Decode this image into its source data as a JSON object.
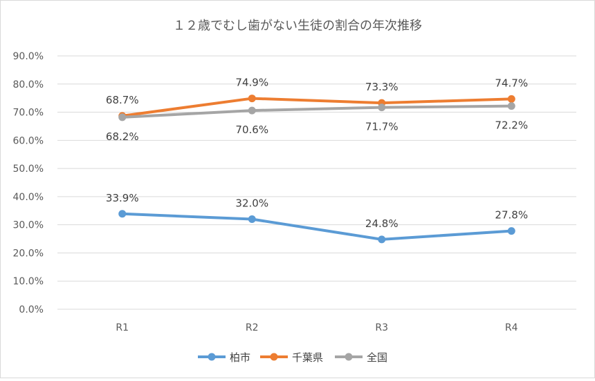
{
  "chart_data": {
    "type": "line",
    "title": "１２歳でむし歯がない生徒の割合の年次推移",
    "xlabel": "",
    "ylabel": "",
    "categories": [
      "R1",
      "R2",
      "R3",
      "R4"
    ],
    "ylim": [
      0,
      90
    ],
    "yticks": [
      "0.0%",
      "10.0%",
      "20.0%",
      "30.0%",
      "40.0%",
      "50.0%",
      "60.0%",
      "70.0%",
      "80.0%",
      "90.0%"
    ],
    "grid": true,
    "legend": "bottom",
    "series": [
      {
        "name": "柏市",
        "values": [
          33.9,
          32.0,
          24.8,
          27.8
        ],
        "labels": [
          "33.9%",
          "32.0%",
          "24.8%",
          "27.8%"
        ],
        "color": "#5b9bd5",
        "label_position": "above"
      },
      {
        "name": "千葉県",
        "values": [
          68.7,
          74.9,
          73.3,
          74.7
        ],
        "labels": [
          "68.7%",
          "74.9%",
          "73.3%",
          "74.7%"
        ],
        "color": "#ed7d31",
        "label_position": "above"
      },
      {
        "name": "全国",
        "values": [
          68.2,
          70.6,
          71.7,
          72.2
        ],
        "labels": [
          "68.2%",
          "70.6%",
          "71.7%",
          "72.2%"
        ],
        "color": "#a5a5a5",
        "label_position": "below"
      }
    ]
  }
}
